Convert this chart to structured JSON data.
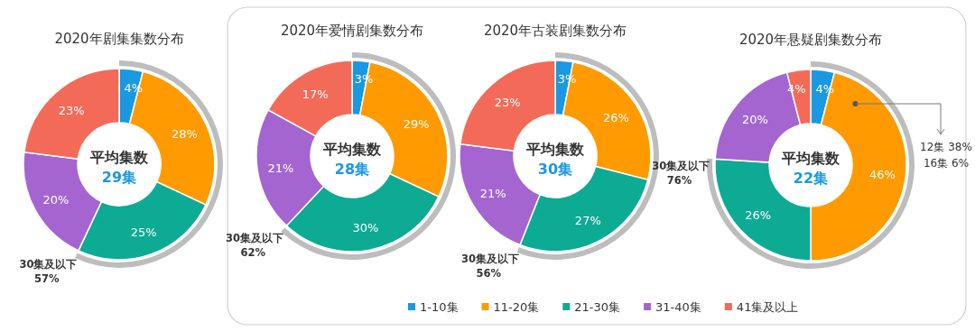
{
  "chart_data": [
    {
      "type": "donut",
      "title": "2020年剧集集数分布",
      "categories": [
        null,
        null,
        null,
        null,
        null
      ],
      "values": [
        4,
        28,
        25,
        20,
        23
      ],
      "colors": [
        "#1a98e0",
        "#ff9a00",
        "#0daa94",
        "#a465d0",
        "#f36b58"
      ],
      "value_labels": [
        "4%",
        "28%",
        "25%",
        "20%",
        "23%"
      ],
      "annotations": [
        "平均集数",
        "29集",
        "30集及以下",
        "57%"
      ]
    },
    {
      "type": "donut",
      "title": "2020年爱情剧集数分布",
      "categories": [
        "1-10集",
        "11-20集",
        "21-30集",
        "31-40集",
        "41集及以上"
      ],
      "values": [
        3,
        29,
        30,
        21,
        17
      ],
      "colors": [
        "#1a98e0",
        "#ff9a00",
        "#0daa94",
        "#a465d0",
        "#f36b58"
      ],
      "value_labels": [
        "3%",
        "29%",
        "30%",
        "21%",
        "17%"
      ],
      "legend": "bottom",
      "annotations": [
        "平均集数",
        "28集",
        "30集及以下",
        "62%"
      ]
    },
    {
      "type": "donut",
      "title": "2020年古装剧集数分布",
      "categories": [
        null,
        null,
        null,
        null,
        null
      ],
      "values": [
        3,
        26,
        27,
        21,
        23
      ],
      "colors": [
        "#1a98e0",
        "#ff9a00",
        "#0daa94",
        "#a465d0",
        "#f36b58"
      ],
      "value_labels": [
        "3%",
        "26%",
        "27%",
        "21%",
        "23%"
      ],
      "annotations": [
        "平均集数",
        "30集",
        "30集及以下",
        "56%"
      ]
    },
    {
      "type": "donut",
      "title": "2020年悬疑剧集数分布",
      "categories": [
        null,
        null,
        null,
        null,
        null
      ],
      "values": [
        4,
        46,
        26,
        20,
        4
      ],
      "colors": [
        "#1a98e0",
        "#ff9a00",
        "#0daa94",
        "#a465d0",
        "#f36b58"
      ],
      "value_labels": [
        "4%",
        "46%",
        "26%",
        "20%",
        "4%"
      ],
      "annotations": [
        "平均集数",
        "22集",
        "30集及以下",
        "76%",
        "12集 38%",
        "16集 6%"
      ]
    }
  ]
}
